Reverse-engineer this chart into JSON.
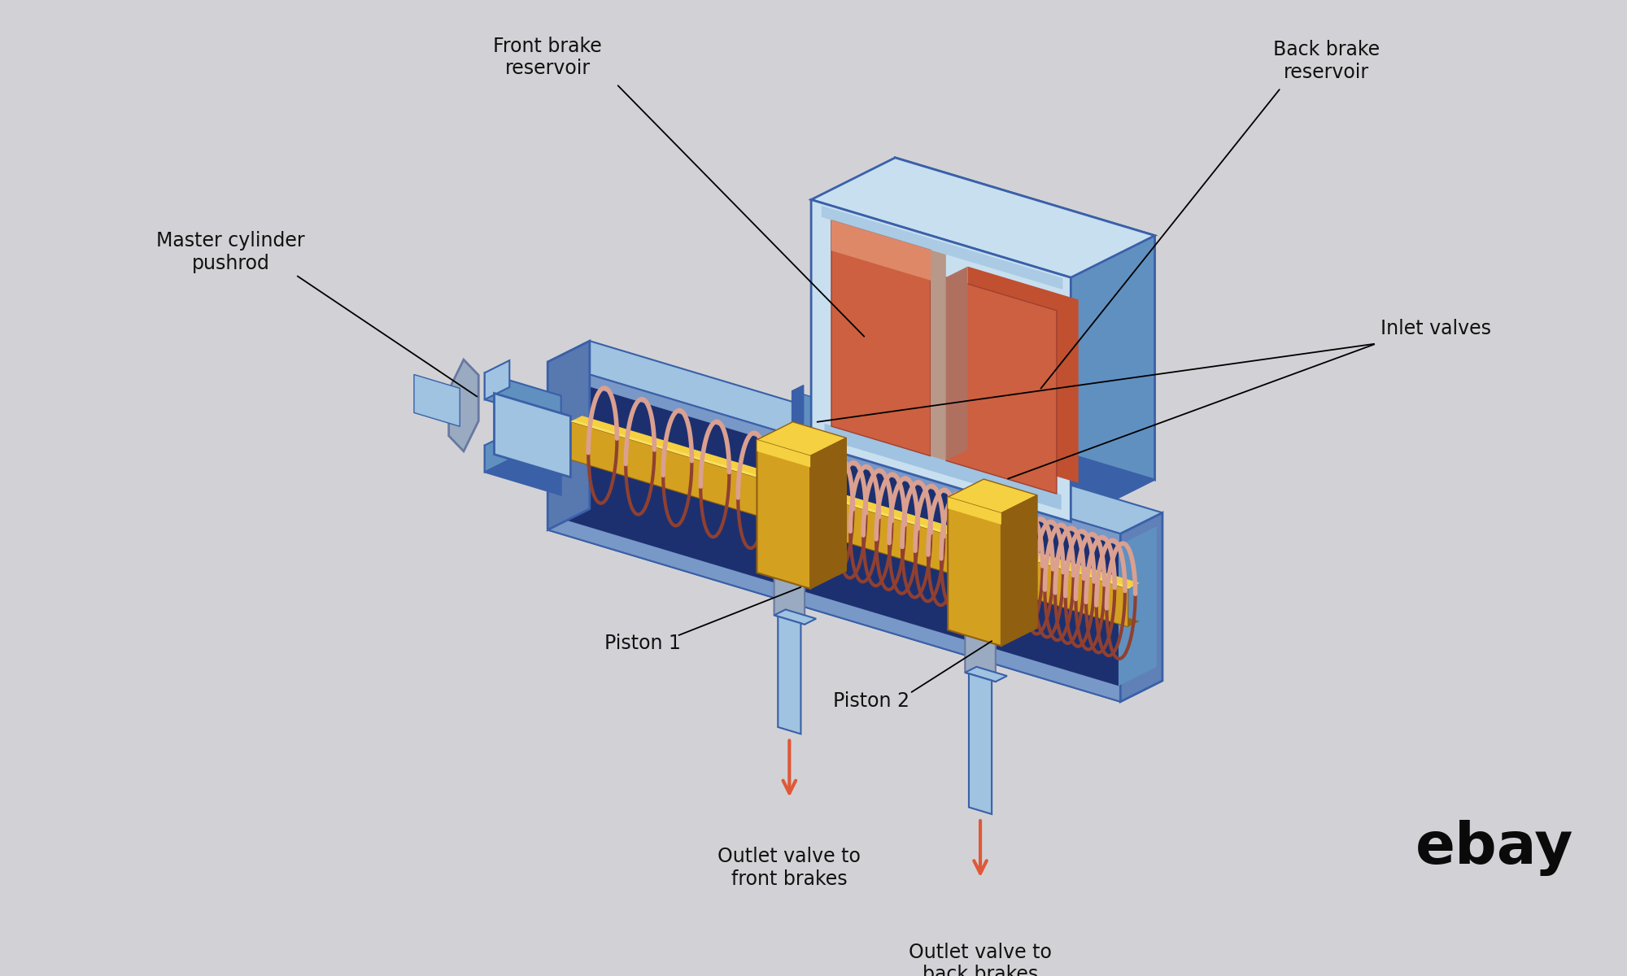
{
  "bg_color": "#d2d2d6",
  "labels": {
    "front_brake_reservoir": "Front brake\nreservoir",
    "back_brake_reservoir": "Back brake\nreservoir",
    "master_cylinder_pushrod": "Master cylinder\npushrod",
    "inlet_valves": "Inlet valves",
    "piston1": "Piston 1",
    "piston2": "Piston 2",
    "outlet_front": "Outlet valve to\nfront brakes",
    "outlet_back": "Outlet valve to\nback brakes",
    "ebay": "ebay"
  },
  "colors": {
    "bg": "#d2d2d6",
    "body_blue_lightest": "#c8dff0",
    "body_blue_light": "#9fc3e0",
    "body_blue_mid": "#6090c0",
    "body_blue_dark": "#3a60a8",
    "body_blue_darker": "#2040808",
    "body_blue_inner": "#1c3070",
    "reservoir_orange": "#cc6040",
    "reservoir_orange_light": "#de8868",
    "reservoir_orange_mid": "#c05030",
    "reservoir_orange_dark": "#a04030",
    "reservoir_shadow": "#b07060",
    "reservoir_tan": "#b89888",
    "gold_bright": "#f5d040",
    "gold_mid": "#d4a020",
    "gold_dark": "#906010",
    "gold_shadow": "#704808",
    "spring_pink": "#dba090",
    "spring_copper": "#c07060",
    "spring_dark": "#904030",
    "spring_shadow": "#703020",
    "arrow_red": "#e05838",
    "text_black": "#111111",
    "silver_light": "#c8d4e0",
    "silver_mid": "#9aaac0",
    "silver_dark": "#6878a0"
  }
}
